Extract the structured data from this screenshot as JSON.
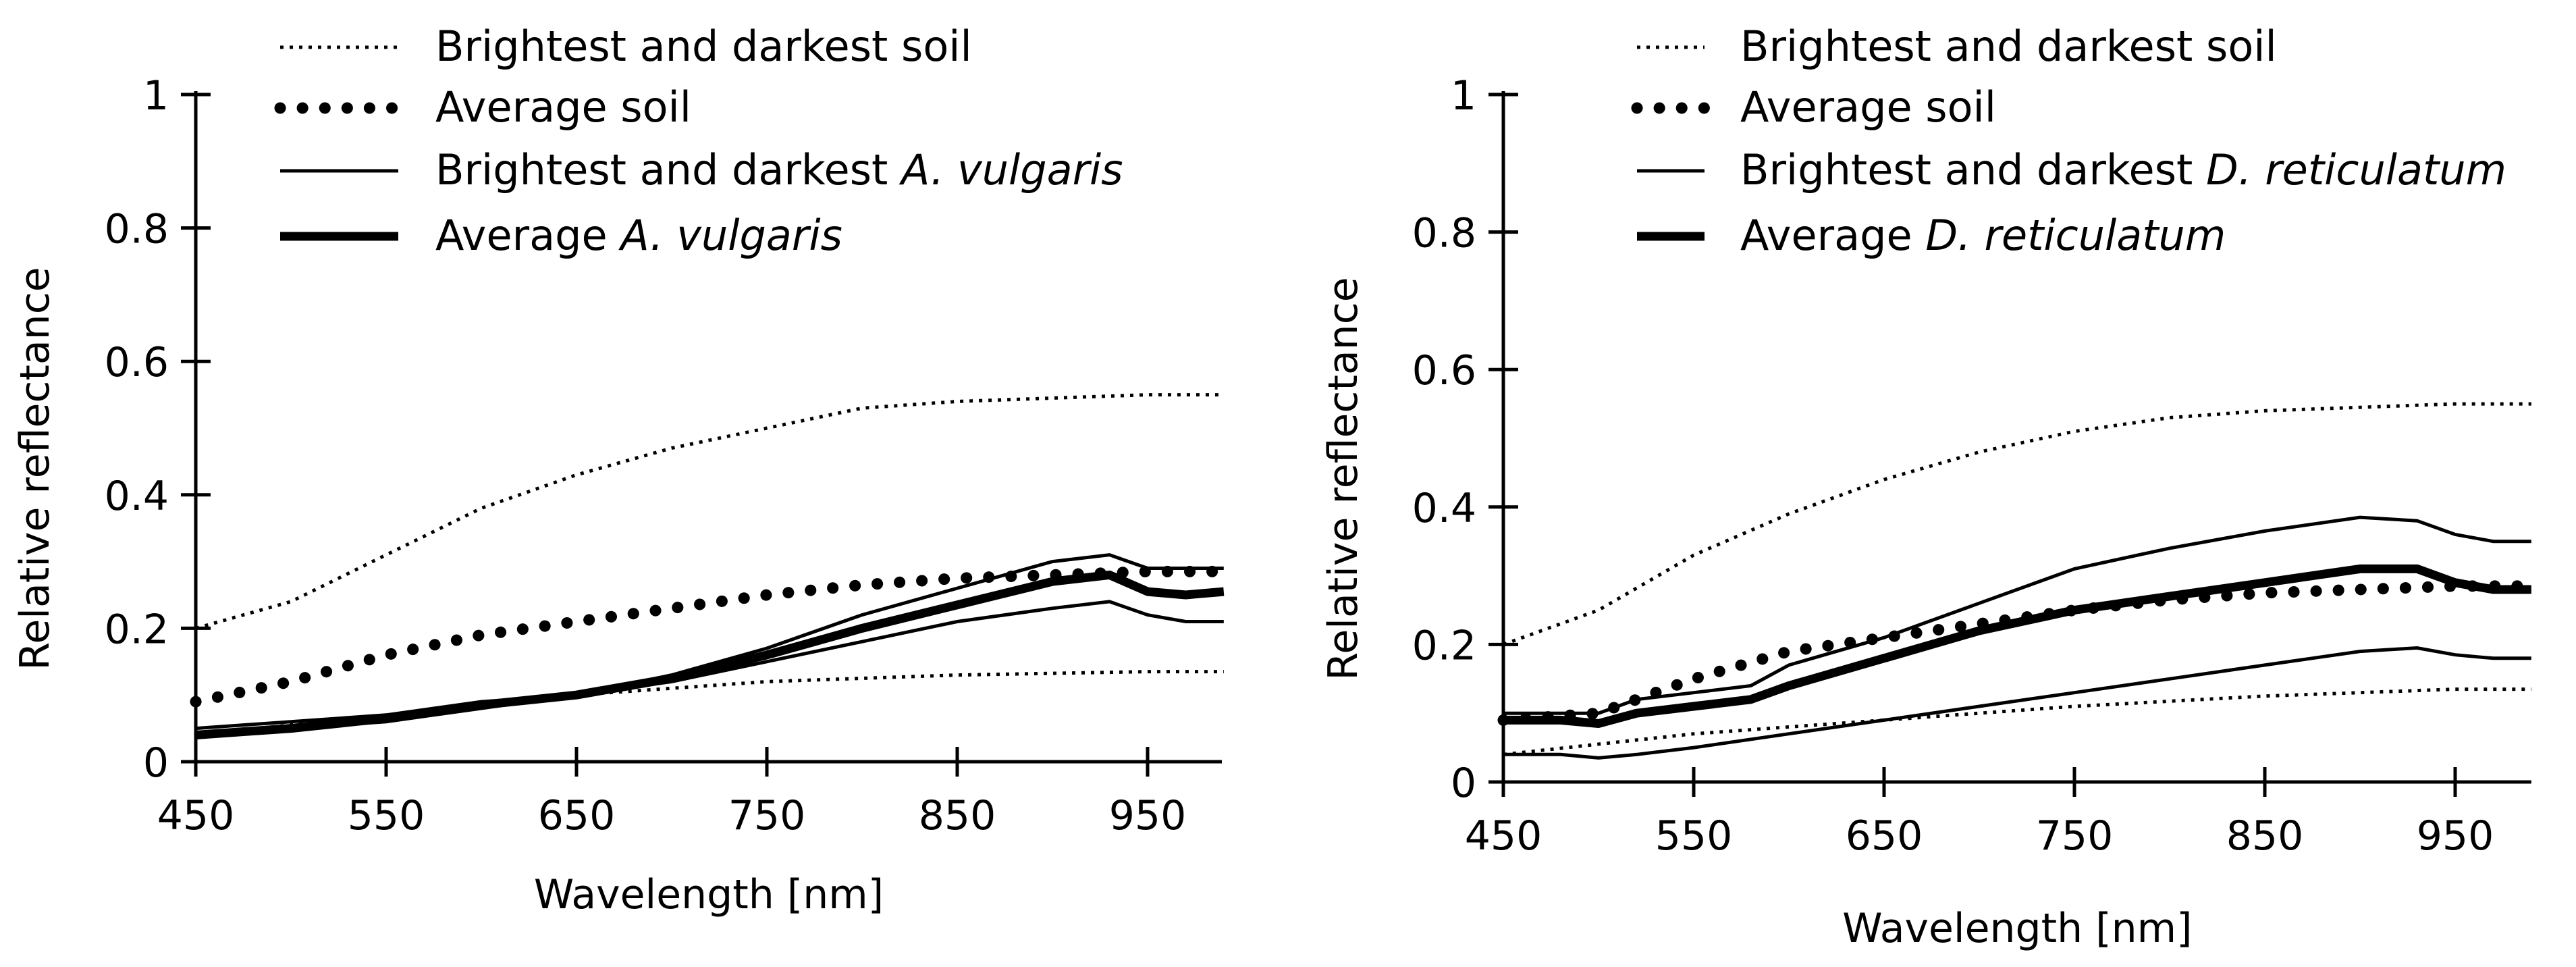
{
  "chart_data": [
    {
      "type": "line",
      "title": "",
      "xlabel": "Wavelength [nm]",
      "ylabel": "Relative reflectance",
      "xlim": [
        450,
        990
      ],
      "ylim": [
        0,
        1
      ],
      "xticks": [
        450,
        550,
        650,
        750,
        850,
        950
      ],
      "yticks": [
        0,
        0.2,
        0.4,
        0.6,
        0.8,
        1
      ],
      "ytick_labels": [
        "0",
        "0.2",
        "0.4",
        "0.6",
        "0.8",
        "1"
      ],
      "legend": [
        {
          "style": "dotted-thin",
          "parts": [
            {
              "text": "Brightest and darkest soil",
              "italic": false
            }
          ]
        },
        {
          "style": "dotted-thick",
          "parts": [
            {
              "text": "Average soil",
              "italic": false
            }
          ]
        },
        {
          "style": "solid-thin",
          "parts": [
            {
              "text": "Brightest and darkest ",
              "italic": false
            },
            {
              "text": "A. vulgaris",
              "italic": true
            }
          ]
        },
        {
          "style": "solid-thick",
          "parts": [
            {
              "text": "Average ",
              "italic": false
            },
            {
              "text": "A. vulgaris",
              "italic": true
            }
          ]
        }
      ],
      "series": [
        {
          "name": "Brightest soil",
          "style": "dotted-thin",
          "x": [
            450,
            500,
            550,
            600,
            650,
            700,
            750,
            800,
            850,
            900,
            950,
            990
          ],
          "y": [
            0.2,
            0.24,
            0.31,
            0.38,
            0.43,
            0.47,
            0.5,
            0.53,
            0.54,
            0.545,
            0.55,
            0.55
          ]
        },
        {
          "name": "Darkest soil",
          "style": "dotted-thin",
          "x": [
            450,
            550,
            650,
            750,
            850,
            950,
            990
          ],
          "y": [
            0.04,
            0.07,
            0.1,
            0.12,
            0.13,
            0.135,
            0.135
          ]
        },
        {
          "name": "Average soil",
          "style": "dotted-thick",
          "x": [
            450,
            500,
            550,
            600,
            650,
            700,
            750,
            800,
            850,
            900,
            950,
            990
          ],
          "y": [
            0.09,
            0.12,
            0.16,
            0.19,
            0.21,
            0.23,
            0.25,
            0.265,
            0.275,
            0.28,
            0.285,
            0.285
          ]
        },
        {
          "name": "Brightest A. vulgaris",
          "style": "solid-thin",
          "x": [
            450,
            500,
            550,
            600,
            650,
            700,
            750,
            800,
            850,
            900,
            930,
            950,
            970,
            990
          ],
          "y": [
            0.05,
            0.06,
            0.07,
            0.09,
            0.1,
            0.13,
            0.17,
            0.22,
            0.26,
            0.3,
            0.31,
            0.29,
            0.29,
            0.29
          ]
        },
        {
          "name": "Darkest A. vulgaris",
          "style": "solid-thin",
          "x": [
            450,
            500,
            550,
            600,
            650,
            700,
            750,
            800,
            850,
            900,
            930,
            950,
            970,
            990
          ],
          "y": [
            0.04,
            0.05,
            0.06,
            0.08,
            0.1,
            0.12,
            0.15,
            0.18,
            0.21,
            0.23,
            0.24,
            0.22,
            0.21,
            0.21
          ]
        },
        {
          "name": "Average A. vulgaris",
          "style": "solid-thick",
          "x": [
            450,
            500,
            550,
            600,
            650,
            700,
            750,
            800,
            850,
            900,
            930,
            950,
            970,
            990
          ],
          "y": [
            0.04,
            0.05,
            0.065,
            0.085,
            0.1,
            0.125,
            0.16,
            0.2,
            0.235,
            0.27,
            0.28,
            0.255,
            0.25,
            0.255
          ]
        }
      ]
    },
    {
      "type": "line",
      "title": "",
      "xlabel": "Wavelength [nm]",
      "ylabel": "Relative reflectance",
      "xlim": [
        450,
        990
      ],
      "ylim": [
        0,
        1
      ],
      "xticks": [
        450,
        550,
        650,
        750,
        850,
        950
      ],
      "yticks": [
        0,
        0.2,
        0.4,
        0.6,
        0.8,
        1
      ],
      "ytick_labels": [
        "0",
        "0.2",
        "0.4",
        "0.6",
        "0.8",
        "1"
      ],
      "legend": [
        {
          "style": "dotted-thin",
          "parts": [
            {
              "text": "Brightest and darkest soil",
              "italic": false
            }
          ]
        },
        {
          "style": "dotted-thick",
          "parts": [
            {
              "text": "Average soil",
              "italic": false
            }
          ]
        },
        {
          "style": "solid-thin",
          "parts": [
            {
              "text": "Brightest and darkest ",
              "italic": false
            },
            {
              "text": "D. reticulatum",
              "italic": true
            }
          ]
        },
        {
          "style": "solid-thick",
          "parts": [
            {
              "text": "Average ",
              "italic": false
            },
            {
              "text": "D. reticulatum",
              "italic": true
            }
          ]
        }
      ],
      "series": [
        {
          "name": "Brightest soil",
          "style": "dotted-thin",
          "x": [
            450,
            500,
            550,
            600,
            650,
            700,
            750,
            800,
            850,
            900,
            950,
            990
          ],
          "y": [
            0.2,
            0.25,
            0.33,
            0.39,
            0.44,
            0.48,
            0.51,
            0.53,
            0.54,
            0.545,
            0.55,
            0.55
          ]
        },
        {
          "name": "Darkest soil",
          "style": "dotted-thin",
          "x": [
            450,
            550,
            650,
            750,
            850,
            950,
            990
          ],
          "y": [
            0.04,
            0.07,
            0.09,
            0.11,
            0.125,
            0.135,
            0.135
          ]
        },
        {
          "name": "Average soil",
          "style": "dotted-thick",
          "x": [
            450,
            500,
            550,
            600,
            650,
            700,
            750,
            800,
            850,
            900,
            950,
            990
          ],
          "y": [
            0.09,
            0.1,
            0.15,
            0.19,
            0.21,
            0.23,
            0.25,
            0.265,
            0.275,
            0.28,
            0.285,
            0.285
          ]
        },
        {
          "name": "Brightest D. reticulatum",
          "style": "solid-thin",
          "x": [
            450,
            480,
            500,
            520,
            550,
            580,
            600,
            650,
            700,
            750,
            800,
            850,
            900,
            930,
            950,
            970,
            990
          ],
          "y": [
            0.1,
            0.1,
            0.1,
            0.12,
            0.13,
            0.14,
            0.17,
            0.21,
            0.26,
            0.31,
            0.34,
            0.365,
            0.385,
            0.38,
            0.36,
            0.35,
            0.35
          ]
        },
        {
          "name": "Darkest D. reticulatum",
          "style": "solid-thin",
          "x": [
            450,
            480,
            500,
            520,
            550,
            600,
            650,
            700,
            750,
            800,
            850,
            900,
            930,
            950,
            970,
            990
          ],
          "y": [
            0.04,
            0.04,
            0.035,
            0.04,
            0.05,
            0.07,
            0.09,
            0.11,
            0.13,
            0.15,
            0.17,
            0.19,
            0.195,
            0.185,
            0.18,
            0.18
          ]
        },
        {
          "name": "Average D. reticulatum",
          "style": "solid-thick",
          "x": [
            450,
            480,
            500,
            520,
            550,
            580,
            600,
            650,
            700,
            750,
            800,
            850,
            900,
            930,
            950,
            970,
            990
          ],
          "y": [
            0.09,
            0.09,
            0.085,
            0.1,
            0.11,
            0.12,
            0.14,
            0.18,
            0.22,
            0.25,
            0.27,
            0.29,
            0.31,
            0.31,
            0.29,
            0.28,
            0.28
          ]
        }
      ]
    }
  ]
}
